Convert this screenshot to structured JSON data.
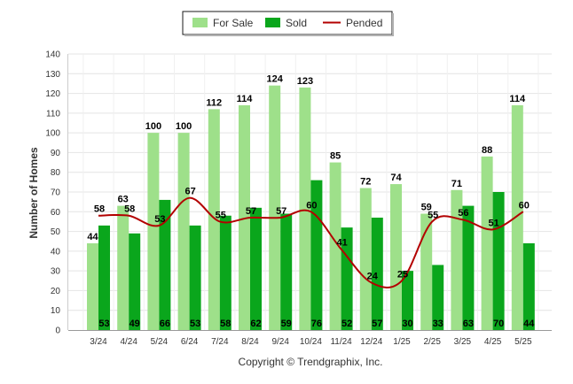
{
  "chart_data": {
    "type": "bar",
    "categories": [
      "3/24",
      "4/24",
      "5/24",
      "6/24",
      "7/24",
      "8/24",
      "9/24",
      "10/24",
      "11/24",
      "12/24",
      "1/25",
      "2/25",
      "3/25",
      "4/25",
      "5/25"
    ],
    "series": [
      {
        "name": "For Sale",
        "type": "bar",
        "color": "#9ee08a",
        "values": [
          44,
          63,
          100,
          100,
          112,
          114,
          124,
          123,
          85,
          72,
          74,
          59,
          71,
          88,
          114
        ]
      },
      {
        "name": "Sold",
        "type": "bar",
        "color": "#0aa61c",
        "values": [
          53,
          49,
          66,
          53,
          58,
          62,
          59,
          76,
          52,
          57,
          30,
          33,
          63,
          70,
          44
        ]
      },
      {
        "name": "Pended",
        "type": "line",
        "color": "#b30000",
        "values": [
          58,
          58,
          53,
          67,
          55,
          57,
          57,
          60,
          41,
          24,
          25,
          55,
          56,
          51,
          60
        ]
      }
    ],
    "xlabel": "",
    "ylabel": "Number of Homes",
    "ylim": [
      0,
      140
    ],
    "ytick_step": 10,
    "grid": true,
    "legend_position": "top-center"
  },
  "copyright": "Copyright © Trendgraphix, Inc."
}
